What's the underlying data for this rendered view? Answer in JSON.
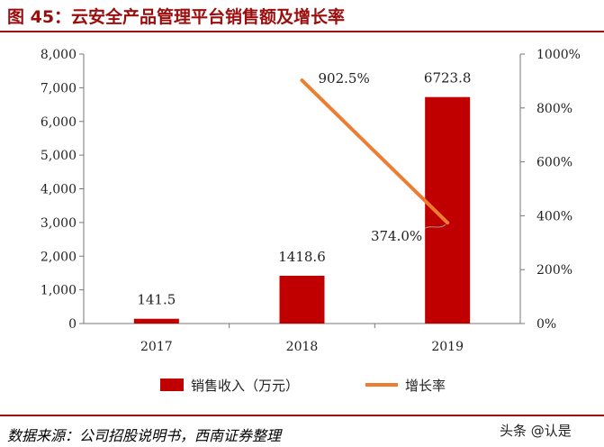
{
  "title": "图 45：云安全产品管理平台销售额及增长率",
  "source": "数据来源：公司招股说明书，西南证券整理",
  "watermark": "头条 @认是",
  "colors": {
    "bar": "#c00000",
    "line": "#ed7d31",
    "title": "#9b0d0d"
  },
  "chart_data": {
    "type": "bar",
    "categories": [
      "2017",
      "2018",
      "2019"
    ],
    "series": [
      {
        "name": "销售收入（万元）",
        "type": "bar",
        "axis": "left",
        "values": [
          141.5,
          1418.6,
          6723.8
        ],
        "labels": [
          "141.5",
          "1418.6",
          "6723.8"
        ]
      },
      {
        "name": "增长率",
        "type": "line",
        "axis": "right",
        "values": [
          null,
          902.5,
          374.0
        ],
        "labels": [
          "",
          "902.5%",
          "374.0%"
        ]
      }
    ],
    "ylim": [
      0,
      8000
    ],
    "y_ticks": [
      "0",
      "1,000",
      "2,000",
      "3,000",
      "4,000",
      "5,000",
      "6,000",
      "7,000",
      "8,000"
    ],
    "y2lim": [
      0,
      1000
    ],
    "y2_ticks": [
      "0%",
      "200%",
      "400%",
      "600%",
      "800%",
      "1000%"
    ],
    "legend_position": "bottom",
    "grid": false
  }
}
